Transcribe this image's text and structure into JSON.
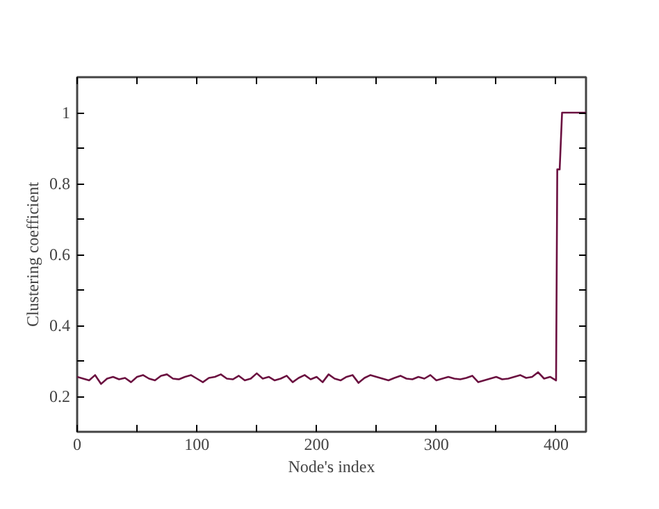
{
  "chart_data": {
    "type": "line",
    "xlabel": "Node's index",
    "ylabel": "Clustering coefficient",
    "x": [
      0,
      5,
      10,
      15,
      20,
      25,
      30,
      35,
      40,
      45,
      50,
      55,
      60,
      65,
      70,
      75,
      80,
      85,
      90,
      95,
      100,
      105,
      110,
      115,
      120,
      125,
      130,
      135,
      140,
      145,
      150,
      155,
      160,
      165,
      170,
      175,
      180,
      185,
      190,
      195,
      200,
      205,
      210,
      215,
      220,
      225,
      230,
      235,
      240,
      245,
      250,
      255,
      260,
      265,
      270,
      275,
      280,
      285,
      290,
      295,
      300,
      305,
      310,
      315,
      320,
      325,
      330,
      335,
      340,
      345,
      350,
      355,
      360,
      365,
      370,
      375,
      380,
      385,
      390,
      395,
      400,
      401,
      403,
      405,
      425
    ],
    "series": [
      {
        "color": "#6b1040",
        "values": [
          0.255,
          0.25,
          0.245,
          0.26,
          0.235,
          0.25,
          0.255,
          0.248,
          0.252,
          0.24,
          0.255,
          0.26,
          0.25,
          0.245,
          0.258,
          0.262,
          0.25,
          0.248,
          0.255,
          0.26,
          0.25,
          0.24,
          0.252,
          0.255,
          0.262,
          0.25,
          0.248,
          0.258,
          0.245,
          0.25,
          0.265,
          0.25,
          0.255,
          0.245,
          0.25,
          0.258,
          0.24,
          0.252,
          0.26,
          0.248,
          0.255,
          0.24,
          0.262,
          0.25,
          0.245,
          0.255,
          0.26,
          0.238,
          0.252,
          0.26,
          0.255,
          0.25,
          0.245,
          0.252,
          0.258,
          0.25,
          0.248,
          0.255,
          0.25,
          0.26,
          0.245,
          0.25,
          0.255,
          0.25,
          0.248,
          0.252,
          0.258,
          0.24,
          0.245,
          0.25,
          0.255,
          0.248,
          0.25,
          0.255,
          0.26,
          0.252,
          0.255,
          0.268,
          0.25,
          0.255,
          0.245,
          0.84,
          0.84,
          1.0,
          1.0
        ]
      }
    ],
    "xlim": [
      0,
      425
    ],
    "ylim": [
      0.1,
      1.1
    ],
    "xticks": [
      0,
      {
        "value": 50,
        "label": null
      },
      100,
      {
        "value": 150,
        "label": null
      },
      200,
      {
        "value": 250,
        "label": null
      },
      300,
      {
        "value": 350,
        "label": null
      },
      400
    ],
    "yticks": [
      0.2,
      {
        "value": 0.3,
        "label": null
      },
      0.4,
      {
        "value": 0.5,
        "label": null
      },
      0.6,
      {
        "value": 0.7,
        "label": null
      },
      0.8,
      {
        "value": 0.9,
        "label": null
      },
      1
    ],
    "grid": false,
    "marker": "none",
    "line_style": "solid"
  }
}
